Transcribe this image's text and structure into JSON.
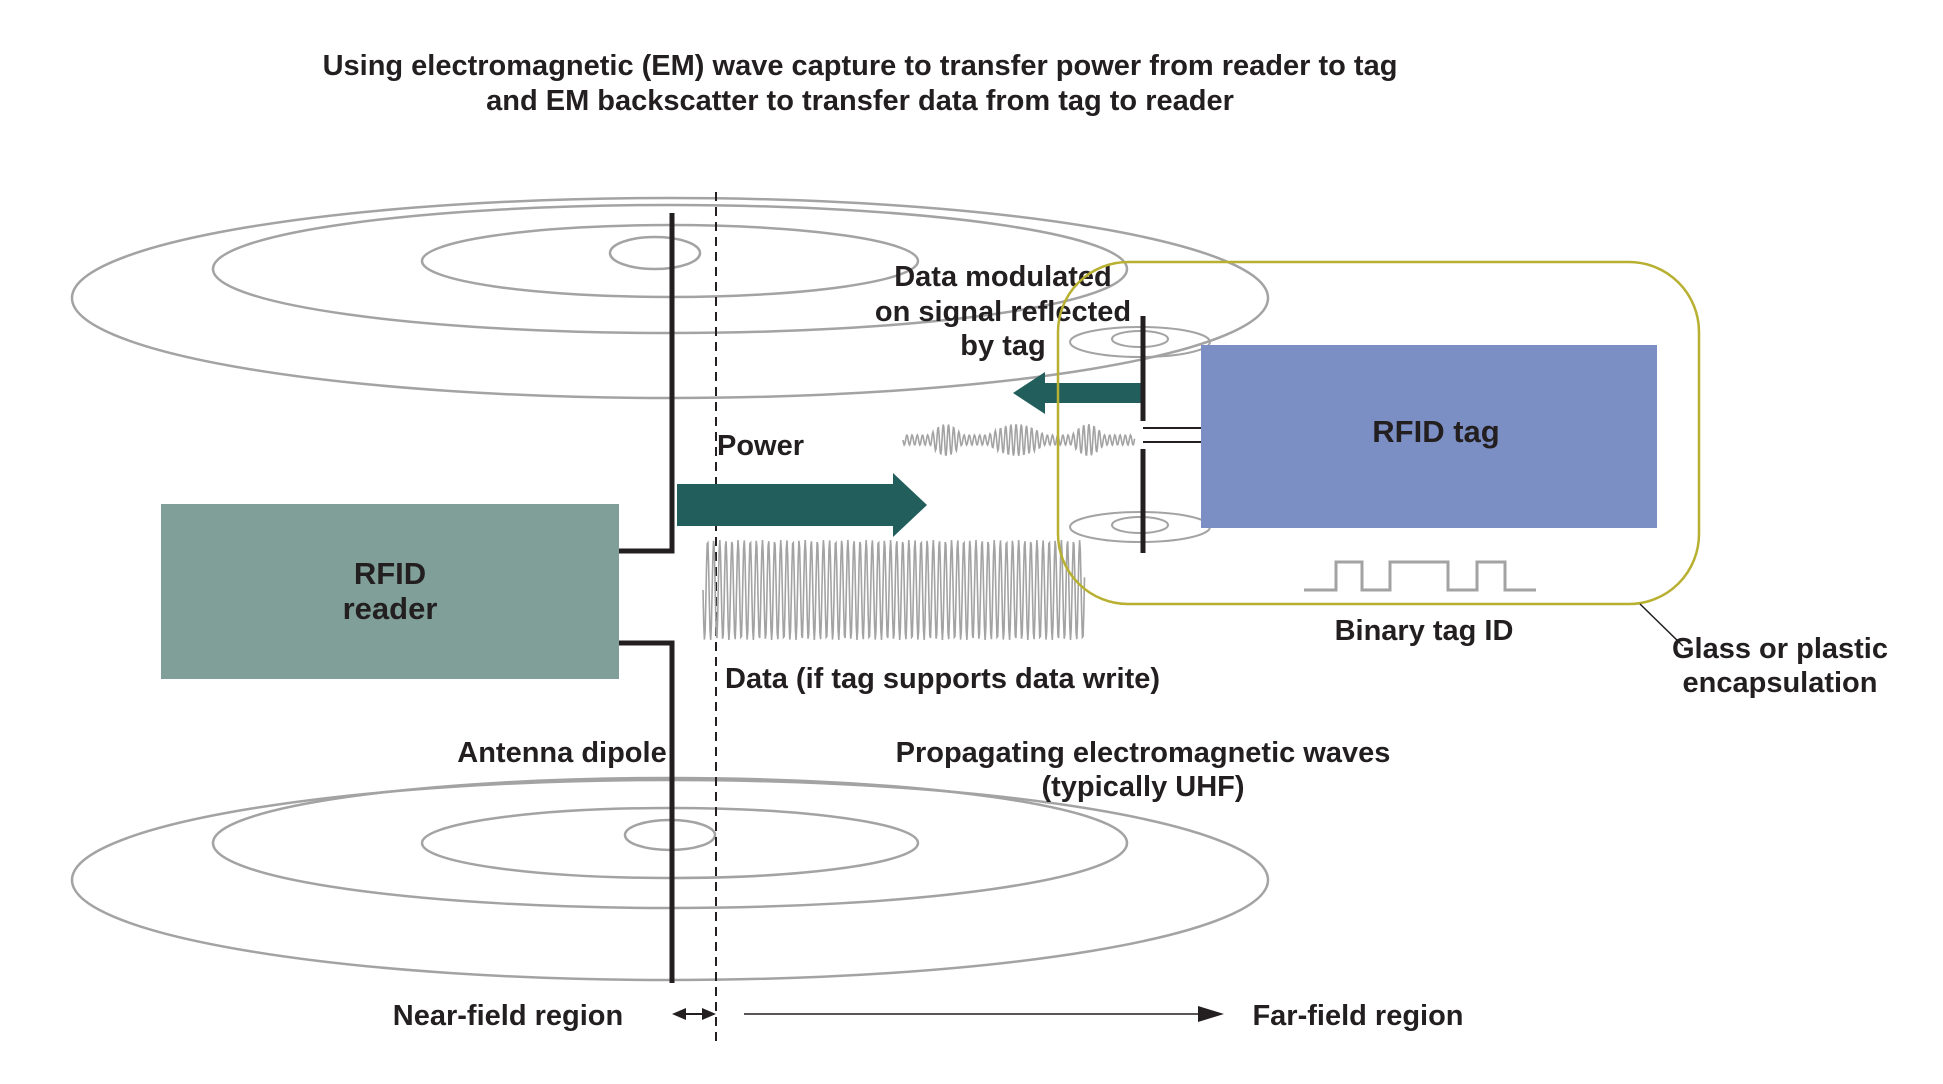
{
  "title": {
    "line1": "Using electromagnetic (EM) wave capture to transfer power from reader to tag",
    "line2": "and EM backscatter to transfer data from tag to reader"
  },
  "reader": {
    "line1": "RFID",
    "line2": "reader"
  },
  "tag": {
    "label": "RFID tag"
  },
  "labels": {
    "power": "Power",
    "data_write": "Data (if tag supports data write)",
    "modulated_1": "Data modulated",
    "modulated_2": "on signal reflected",
    "modulated_3": "by tag",
    "antenna_dipole": "Antenna dipole",
    "propagating_1": "Propagating electromagnetic waves",
    "propagating_2": "(typically UHF)",
    "binary_tag_id": "Binary tag ID",
    "encapsulation_1": "Glass or plastic",
    "encapsulation_2": "encapsulation",
    "near_field": "Near-field region",
    "far_field": "Far-field region"
  },
  "colors": {
    "reader_box": "#7f9f98",
    "tag_box": "#7b8fc4",
    "arrow": "#225f5c",
    "encapsulation_outline": "#b8b030",
    "field_ellipse": "#a3a3a3",
    "antenna": "#231f20"
  }
}
